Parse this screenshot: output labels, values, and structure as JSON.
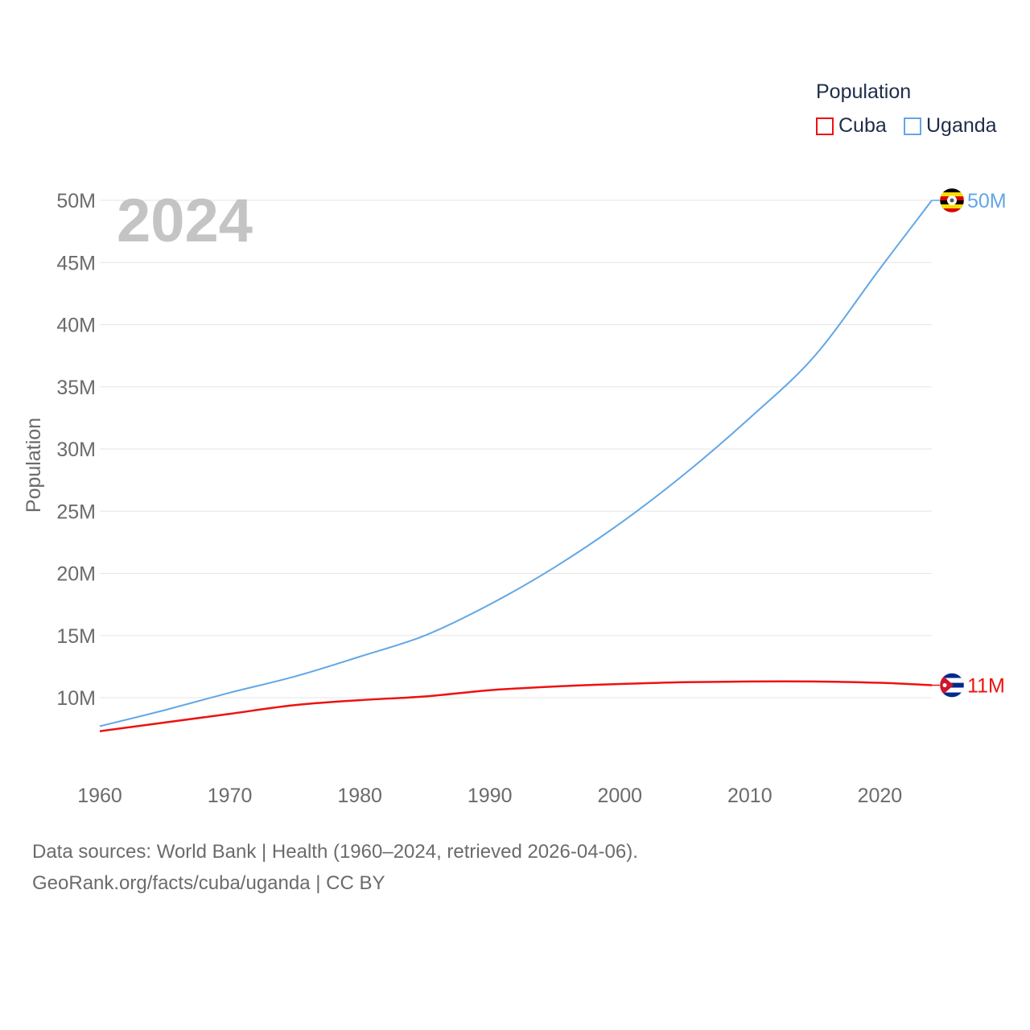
{
  "legend": {
    "title": "Population",
    "items": [
      {
        "label": "Cuba",
        "color": "#ee1111"
      },
      {
        "label": "Uganda",
        "color": "#63a6e6"
      }
    ]
  },
  "footer": {
    "line1": "Data sources: World Bank | Health (1960–2024, retrieved 2026-04-06).",
    "line2": "GeoRank.org/facts/cuba/uganda | CC BY"
  },
  "chart_data": {
    "type": "line",
    "title": "",
    "year_label": "2024",
    "xlabel": "",
    "ylabel": "Population",
    "xlim": [
      1960,
      2024
    ],
    "ylim": [
      5000000,
      51000000
    ],
    "x_ticks": [
      1960,
      1970,
      1980,
      1990,
      2000,
      2010,
      2020
    ],
    "y_ticks": [
      10000000,
      15000000,
      20000000,
      25000000,
      30000000,
      35000000,
      40000000,
      45000000,
      50000000
    ],
    "y_tick_labels": [
      "10M",
      "15M",
      "20M",
      "25M",
      "30M",
      "35M",
      "40M",
      "45M",
      "50M"
    ],
    "grid": true,
    "legend_position": "top-right",
    "series": [
      {
        "name": "Cuba",
        "color": "#ee1111",
        "end_label": "11M",
        "x": [
          1960,
          1965,
          1970,
          1975,
          1980,
          1985,
          1990,
          1995,
          2000,
          2005,
          2010,
          2015,
          2020,
          2024
        ],
        "values": [
          7300000,
          8000000,
          8700000,
          9400000,
          9800000,
          10100000,
          10600000,
          10900000,
          11100000,
          11250000,
          11300000,
          11300000,
          11200000,
          11000000
        ]
      },
      {
        "name": "Uganda",
        "color": "#63a6e6",
        "end_label": "50M",
        "x": [
          1960,
          1965,
          1970,
          1975,
          1980,
          1985,
          1990,
          1995,
          2000,
          2005,
          2010,
          2015,
          2020,
          2024
        ],
        "values": [
          7700000,
          9000000,
          10400000,
          11700000,
          13300000,
          15000000,
          17500000,
          20500000,
          24000000,
          28000000,
          32500000,
          37500000,
          44500000,
          50000000
        ]
      }
    ]
  }
}
